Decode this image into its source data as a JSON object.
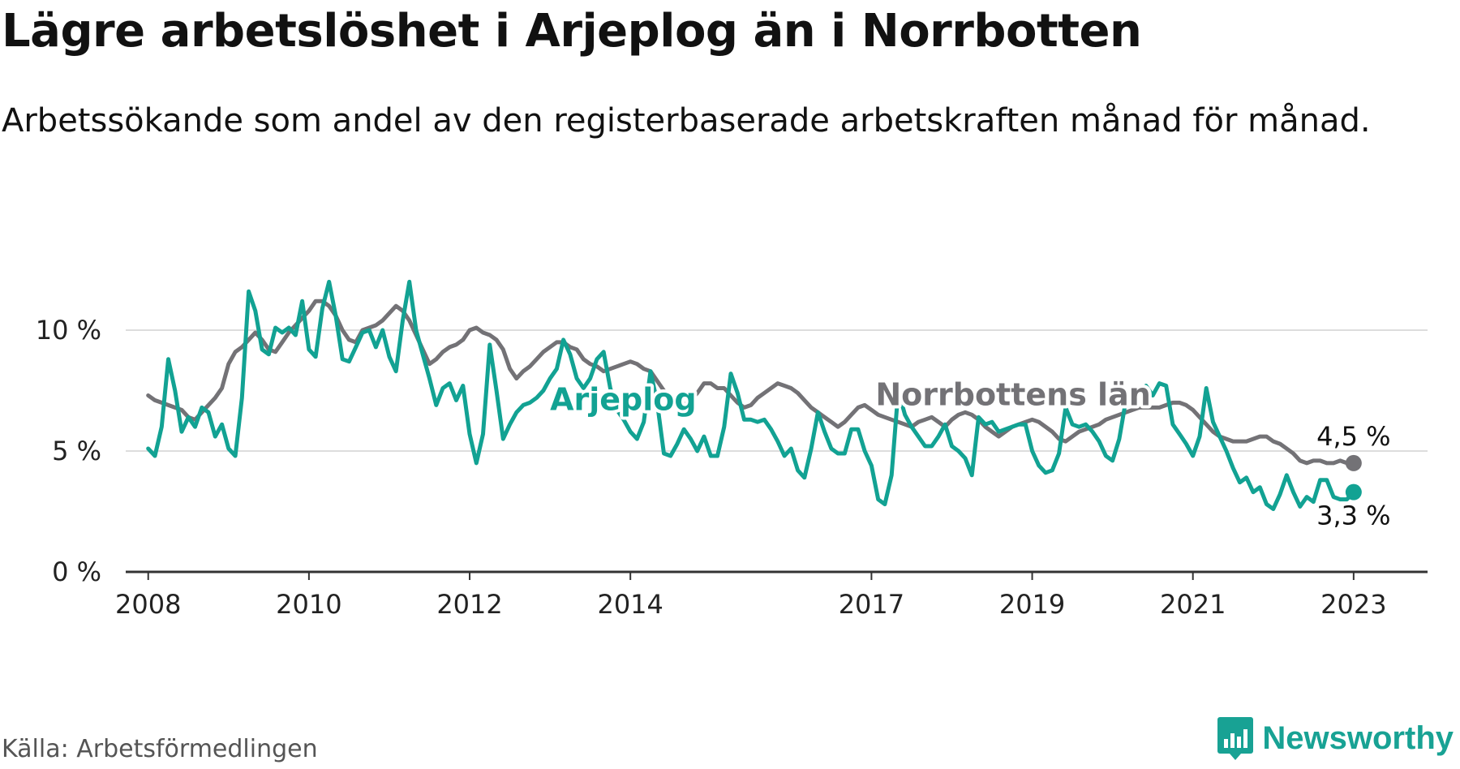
{
  "title": "Lägre arbetslöshet i Arjeplog än i Norrbotten",
  "subtitle": "Arbetssökande som andel av den registerbaserade arbetskraften månad för månad.",
  "source": "Källa: Arbetsförmedlingen",
  "logo_text": "Newsworthy",
  "colors": {
    "arjeplog": "#12a293",
    "norrbotten": "#737276",
    "grid": "#dddddd",
    "axis": "#333333",
    "brand": "#18a294"
  },
  "chart_data": {
    "type": "line",
    "title": "Lägre arbetslöshet i Arjeplog än i Norrbotten",
    "xlabel": "",
    "ylabel": "",
    "xlim": [
      2007.72,
      2023.92
    ],
    "ylim": [
      0,
      10
    ],
    "yticks": [
      0,
      5,
      10
    ],
    "ytick_labels": [
      "0 %",
      "5 %",
      "10 %"
    ],
    "xticks": [
      2008,
      2010,
      2012,
      2014,
      2017,
      2019,
      2021,
      2023
    ],
    "xtick_labels": [
      "2008",
      "2010",
      "2012",
      "2014",
      "2017",
      "2019",
      "2021",
      "2023"
    ],
    "x_start": 2008.0,
    "x_step": 0.083333,
    "series": [
      {
        "name": "Arjeplog",
        "end_label": "3,3 %",
        "values": [
          5.1,
          4.8,
          6.0,
          8.8,
          7.5,
          5.8,
          6.4,
          6.0,
          6.8,
          6.6,
          5.6,
          6.1,
          5.1,
          4.8,
          7.2,
          11.6,
          10.8,
          9.2,
          9.0,
          10.1,
          9.9,
          10.1,
          9.8,
          11.2,
          9.2,
          8.9,
          10.9,
          12.0,
          10.6,
          8.8,
          8.7,
          9.3,
          9.9,
          10.0,
          9.3,
          10.0,
          8.9,
          8.3,
          10.4,
          12.0,
          10.0,
          9.0,
          8.0,
          6.9,
          7.6,
          7.8,
          7.1,
          7.7,
          5.7,
          4.5,
          5.7,
          9.4,
          7.5,
          5.5,
          6.1,
          6.6,
          6.9,
          7.0,
          7.2,
          7.5,
          8.0,
          8.4,
          9.6,
          9.0,
          8.0,
          7.6,
          8.0,
          8.8,
          9.1,
          7.6,
          6.7,
          6.3,
          5.8,
          5.5,
          6.2,
          8.3,
          7.0,
          4.9,
          4.8,
          5.3,
          5.9,
          5.5,
          5.0,
          5.6,
          4.8,
          4.8,
          6.0,
          8.2,
          7.4,
          6.3,
          6.3,
          6.2,
          6.3,
          5.9,
          5.4,
          4.8,
          5.1,
          4.2,
          3.9,
          5.1,
          6.6,
          5.8,
          5.1,
          4.9,
          4.9,
          5.9,
          5.9,
          5.0,
          4.4,
          3.0,
          2.8,
          4.0,
          7.5,
          6.5,
          6.0,
          5.6,
          5.2,
          5.2,
          5.6,
          6.1,
          5.2,
          5.0,
          4.7,
          4.0,
          6.4,
          6.1,
          6.2,
          5.8,
          5.9,
          6.0,
          6.1,
          6.1,
          5.0,
          4.4,
          4.1,
          4.2,
          4.9,
          6.8,
          6.1,
          6.0,
          6.1,
          5.8,
          5.4,
          4.8,
          4.6,
          5.5,
          7.1,
          7.6,
          7.3,
          7.7,
          7.3,
          7.8,
          7.7,
          6.1,
          5.7,
          5.3,
          4.8,
          5.6,
          7.6,
          6.2,
          5.6,
          5.0,
          4.3,
          3.7,
          3.9,
          3.3,
          3.5,
          2.8,
          2.6,
          3.2,
          4.0,
          3.3,
          2.7,
          3.1,
          2.9,
          3.8,
          3.8,
          3.1,
          3.0,
          3.0,
          3.3
        ]
      },
      {
        "name": "Norrbottens län",
        "end_label": "4,5 %",
        "values": [
          7.3,
          7.1,
          7.0,
          6.9,
          6.8,
          6.7,
          6.4,
          6.3,
          6.6,
          6.9,
          7.2,
          7.6,
          8.6,
          9.1,
          9.3,
          9.6,
          9.9,
          9.6,
          9.2,
          9.1,
          9.5,
          9.9,
          10.2,
          10.5,
          10.8,
          11.2,
          11.2,
          11.0,
          10.6,
          10.0,
          9.6,
          9.5,
          10.0,
          10.1,
          10.2,
          10.4,
          10.7,
          11.0,
          10.8,
          10.4,
          9.8,
          9.2,
          8.6,
          8.8,
          9.1,
          9.3,
          9.4,
          9.6,
          10.0,
          10.1,
          9.9,
          9.8,
          9.6,
          9.2,
          8.4,
          8.0,
          8.3,
          8.5,
          8.8,
          9.1,
          9.3,
          9.5,
          9.5,
          9.3,
          9.2,
          8.8,
          8.6,
          8.5,
          8.3,
          8.4,
          8.5,
          8.6,
          8.7,
          8.6,
          8.4,
          8.3,
          7.9,
          7.5,
          7.2,
          6.8,
          6.9,
          7.1,
          7.4,
          7.8,
          7.8,
          7.6,
          7.6,
          7.3,
          7.0,
          6.8,
          6.9,
          7.2,
          7.4,
          7.6,
          7.8,
          7.7,
          7.6,
          7.4,
          7.1,
          6.8,
          6.6,
          6.4,
          6.2,
          6.0,
          6.2,
          6.5,
          6.8,
          6.9,
          6.7,
          6.5,
          6.4,
          6.3,
          6.2,
          6.1,
          6.0,
          6.2,
          6.3,
          6.4,
          6.2,
          6.0,
          6.3,
          6.5,
          6.6,
          6.5,
          6.3,
          6.0,
          5.8,
          5.6,
          5.8,
          6.0,
          6.1,
          6.2,
          6.3,
          6.2,
          6.0,
          5.8,
          5.5,
          5.4,
          5.6,
          5.8,
          5.9,
          6.0,
          6.1,
          6.3,
          6.4,
          6.5,
          6.6,
          6.7,
          6.8,
          6.8,
          6.8,
          6.8,
          6.9,
          7.0,
          7.0,
          6.9,
          6.7,
          6.4,
          6.1,
          5.8,
          5.6,
          5.5,
          5.4,
          5.4,
          5.4,
          5.5,
          5.6,
          5.6,
          5.4,
          5.3,
          5.1,
          4.9,
          4.6,
          4.5,
          4.6,
          4.6,
          4.5,
          4.5,
          4.6,
          4.5,
          4.5
        ]
      }
    ],
    "series_labels": [
      {
        "series": "Arjeplog",
        "text": "Arjeplog",
        "x": 2013.0,
        "y": 6.7
      },
      {
        "series": "Norrbottens län",
        "text": "Norrbottens län",
        "x": 2017.05,
        "y": 6.9
      }
    ]
  }
}
